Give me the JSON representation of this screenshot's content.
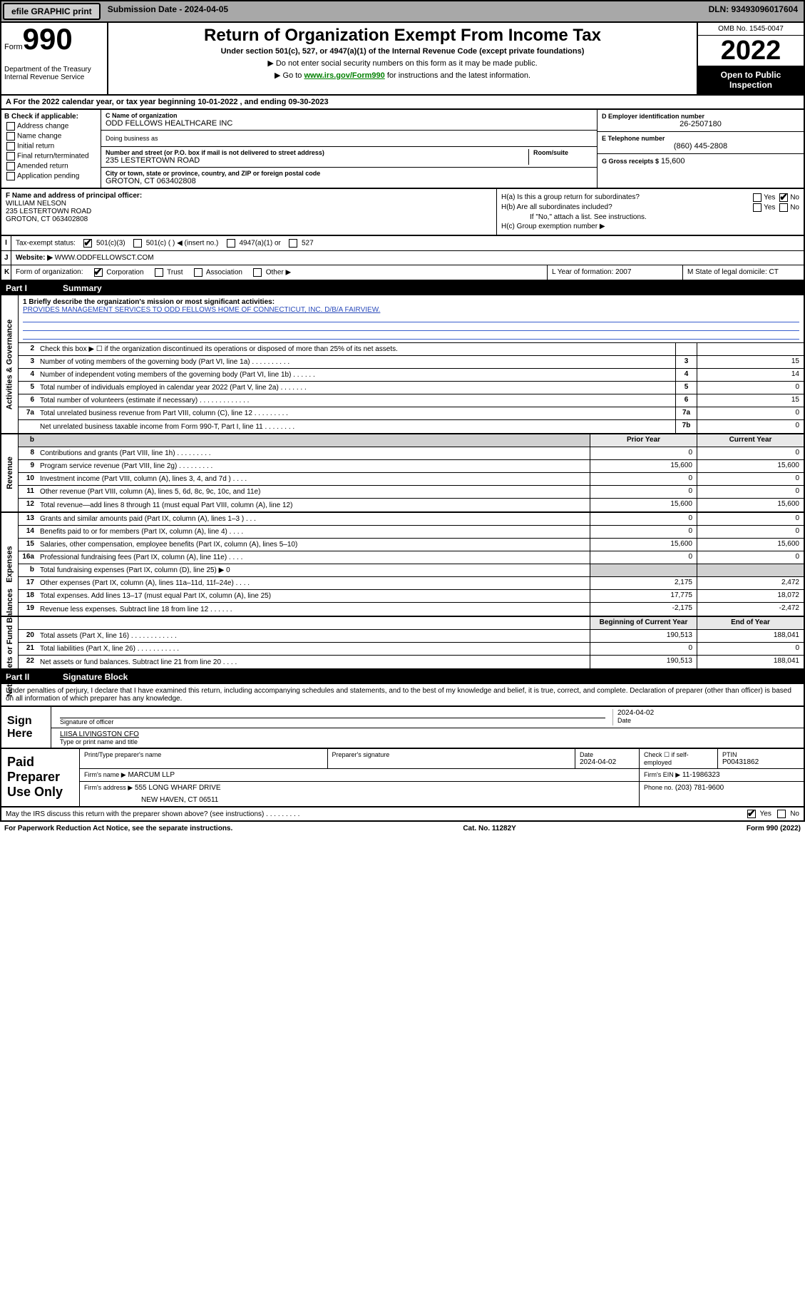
{
  "topbar": {
    "efile_btn": "efile GRAPHIC print",
    "submission_label": "Submission Date - 2024-04-05",
    "dln": "DLN: 93493096017604"
  },
  "hdr": {
    "form_word": "Form",
    "form_num": "990",
    "dept": "Department of the Treasury",
    "irs": "Internal Revenue Service",
    "title": "Return of Organization Exempt From Income Tax",
    "subtitle": "Under section 501(c), 527, or 4947(a)(1) of the Internal Revenue Code (except private foundations)",
    "note1": "▶ Do not enter social security numbers on this form as it may be made public.",
    "note2_pre": "▶ Go to ",
    "note2_link": "www.irs.gov/Form990",
    "note2_post": " for instructions and the latest information.",
    "omb": "OMB No. 1545-0047",
    "year": "2022",
    "open": "Open to Public Inspection"
  },
  "A": {
    "text": "A For the 2022 calendar year, or tax year beginning 10-01-2022    , and ending 09-30-2023"
  },
  "B": {
    "header": "B Check if applicable:",
    "opts": [
      "Address change",
      "Name change",
      "Initial return",
      "Final return/terminated",
      "Amended return",
      "Application pending"
    ]
  },
  "C": {
    "name_lab": "C Name of organization",
    "name": "ODD FELLOWS HEALTHCARE INC",
    "dba_lab": "Doing business as",
    "addr_lab": "Number and street (or P.O. box if mail is not delivered to street address)",
    "room_lab": "Room/suite",
    "addr": "235 LESTERTOWN ROAD",
    "city_lab": "City or town, state or province, country, and ZIP or foreign postal code",
    "city": "GROTON, CT  063402808"
  },
  "DEG": {
    "d_lab": "D Employer identification number",
    "d_val": "26-2507180",
    "e_lab": "E Telephone number",
    "e_val": "(860) 445-2808",
    "g_lab": "G Gross receipts $",
    "g_val": "15,600"
  },
  "F": {
    "lab": "F Name and address of principal officer:",
    "name": "WILLIAM NELSON",
    "addr1": "235 LESTERTOWN ROAD",
    "addr2": "GROTON, CT  063402808"
  },
  "H": {
    "a": "H(a)  Is this a group return for subordinates?",
    "b": "H(b)  Are all subordinates included?",
    "b_note": "If \"No,\" attach a list. See instructions.",
    "c": "H(c)  Group exemption number ▶"
  },
  "I": {
    "lab": "I",
    "text": "Tax-exempt status:",
    "c501c3": "501(c)(3)",
    "c501c": "501(c) (  ) ◀ (insert no.)",
    "c4947": "4947(a)(1) or",
    "c527": "527"
  },
  "J": {
    "lab": "J",
    "text": "Website: ▶",
    "val": "WWW.ODDFELLOWSCT.COM"
  },
  "K": {
    "lab": "K",
    "text": "Form of organization:",
    "opts": [
      "Corporation",
      "Trust",
      "Association",
      "Other ▶"
    ]
  },
  "L": {
    "text": "L Year of formation: 2007"
  },
  "M": {
    "text": "M State of legal domicile: CT"
  },
  "part1": {
    "num": "Part I",
    "title": "Summary"
  },
  "mission": {
    "q": "1  Briefly describe the organization's mission or most significant activities:",
    "text": "PROVIDES MANAGEMENT SERVICES TO ODD FELLOWS HOME OF CONNECTICUT, INC. D/B/A FAIRVIEW."
  },
  "gov_lines": [
    {
      "n": "2",
      "d": "Check this box ▶ ☐  if the organization discontinued its operations or disposed of more than 25% of its net assets.",
      "k": "",
      "v": ""
    },
    {
      "n": "3",
      "d": "Number of voting members of the governing body (Part VI, line 1a)   .    .    .    .    .    .    .    .    .    .",
      "k": "3",
      "v": "15"
    },
    {
      "n": "4",
      "d": "Number of independent voting members of the governing body (Part VI, line 1b)    .    .    .    .    .    .",
      "k": "4",
      "v": "14"
    },
    {
      "n": "5",
      "d": "Total number of individuals employed in calendar year 2022 (Part V, line 2a)    .    .    .    .    .    .    .",
      "k": "5",
      "v": "0"
    },
    {
      "n": "6",
      "d": "Total number of volunteers (estimate if necessary)    .    .    .    .    .    .    .    .    .    .    .    .    .",
      "k": "6",
      "v": "15"
    },
    {
      "n": "7a",
      "d": "Total unrelated business revenue from Part VIII, column (C), line 12    .    .    .    .    .    .    .    .    .",
      "k": "7a",
      "v": "0"
    },
    {
      "n": "",
      "d": "Net unrelated business taxable income from Form 990-T, Part I, line 11    .    .    .    .    .    .    .    .",
      "k": "7b",
      "v": "0"
    }
  ],
  "twocol_header": {
    "prior": "Prior Year",
    "current": "Current Year"
  },
  "rev_label": "Revenue",
  "rev_lines": [
    {
      "n": "8",
      "d": "Contributions and grants (Part VIII, line 1h)    .    .    .    .    .    .    .    .    .",
      "p": "0",
      "c": "0"
    },
    {
      "n": "9",
      "d": "Program service revenue (Part VIII, line 2g)    .    .    .    .    .    .    .    .    .",
      "p": "15,600",
      "c": "15,600"
    },
    {
      "n": "10",
      "d": "Investment income (Part VIII, column (A), lines 3, 4, and 7d )    .    .    .    .",
      "p": "0",
      "c": "0"
    },
    {
      "n": "11",
      "d": "Other revenue (Part VIII, column (A), lines 5, 6d, 8c, 9c, 10c, and 11e)",
      "p": "0",
      "c": "0"
    },
    {
      "n": "12",
      "d": "Total revenue—add lines 8 through 11 (must equal Part VIII, column (A), line 12)",
      "p": "15,600",
      "c": "15,600"
    }
  ],
  "exp_label": "Expenses",
  "exp_lines": [
    {
      "n": "13",
      "d": "Grants and similar amounts paid (Part IX, column (A), lines 1–3 )   .    .    .",
      "p": "0",
      "c": "0"
    },
    {
      "n": "14",
      "d": "Benefits paid to or for members (Part IX, column (A), line 4)    .    .    .    .",
      "p": "0",
      "c": "0"
    },
    {
      "n": "15",
      "d": "Salaries, other compensation, employee benefits (Part IX, column (A), lines 5–10)",
      "p": "15,600",
      "c": "15,600"
    },
    {
      "n": "16a",
      "d": "Professional fundraising fees (Part IX, column (A), line 11e)    .    .    .    .",
      "p": "0",
      "c": "0"
    },
    {
      "n": "b",
      "d": "Total fundraising expenses (Part IX, column (D), line 25) ▶ 0",
      "p": "",
      "c": ""
    },
    {
      "n": "17",
      "d": "Other expenses (Part IX, column (A), lines 11a–11d, 11f–24e)    .    .    .    .",
      "p": "2,175",
      "c": "2,472"
    },
    {
      "n": "18",
      "d": "Total expenses. Add lines 13–17 (must equal Part IX, column (A), line 25)",
      "p": "17,775",
      "c": "18,072"
    },
    {
      "n": "19",
      "d": "Revenue less expenses. Subtract line 18 from line 12    .    .    .    .    .    .",
      "p": "-2,175",
      "c": "-2,472"
    }
  ],
  "na_label": "Net Assets or Fund Balances",
  "na_header": {
    "prior": "Beginning of Current Year",
    "current": "End of Year"
  },
  "na_lines": [
    {
      "n": "20",
      "d": "Total assets (Part X, line 16)    .    .    .    .    .    .    .    .    .    .    .    .",
      "p": "190,513",
      "c": "188,041"
    },
    {
      "n": "21",
      "d": "Total liabilities (Part X, line 26)    .    .    .    .    .    .    .    .    .    .    .",
      "p": "0",
      "c": "0"
    },
    {
      "n": "22",
      "d": "Net assets or fund balances. Subtract line 21 from line 20    .    .    .    .",
      "p": "190,513",
      "c": "188,041"
    }
  ],
  "gov_label": "Activities & Governance",
  "part2": {
    "num": "Part II",
    "title": "Signature Block"
  },
  "penalty": "Under penalties of perjury, I declare that I have examined this return, including accompanying schedules and statements, and to the best of my knowledge and belief, it is true, correct, and complete. Declaration of preparer (other than officer) is based on all information of which preparer has any knowledge.",
  "sign": {
    "here": "Sign Here",
    "sig_lab": "Signature of officer",
    "date_lab": "Date",
    "date": "2024-04-02",
    "name": "LIISA LIVINGSTON CFO",
    "name_lab": "Type or print name and title"
  },
  "prep": {
    "label": "Paid Preparer Use Only",
    "r1": {
      "a": "Print/Type preparer's name",
      "b": "Preparer's signature",
      "c_lab": "Date",
      "c": "2024-04-02",
      "d": "Check ☐ if self-employed",
      "e_lab": "PTIN",
      "e": "P00431862"
    },
    "r2": {
      "a_lab": "Firm's name    ▶",
      "a": "MARCUM LLP",
      "b_lab": "Firm's EIN ▶",
      "b": "11-1986323"
    },
    "r3": {
      "a_lab": "Firm's address ▶",
      "a": "555 LONG WHARF DRIVE",
      "b_lab": "Phone no.",
      "b": "(203) 781-9600"
    },
    "r3b": "NEW HAVEN, CT  06511"
  },
  "may": {
    "q": "May the IRS discuss this return with the preparer shown above? (see instructions)    .    .    .    .    .    .    .    .    .",
    "yes": "Yes",
    "no": "No"
  },
  "foot": {
    "l": "For Paperwork Reduction Act Notice, see the separate instructions.",
    "m": "Cat. No. 11282Y",
    "r": "Form 990 (2022)"
  }
}
